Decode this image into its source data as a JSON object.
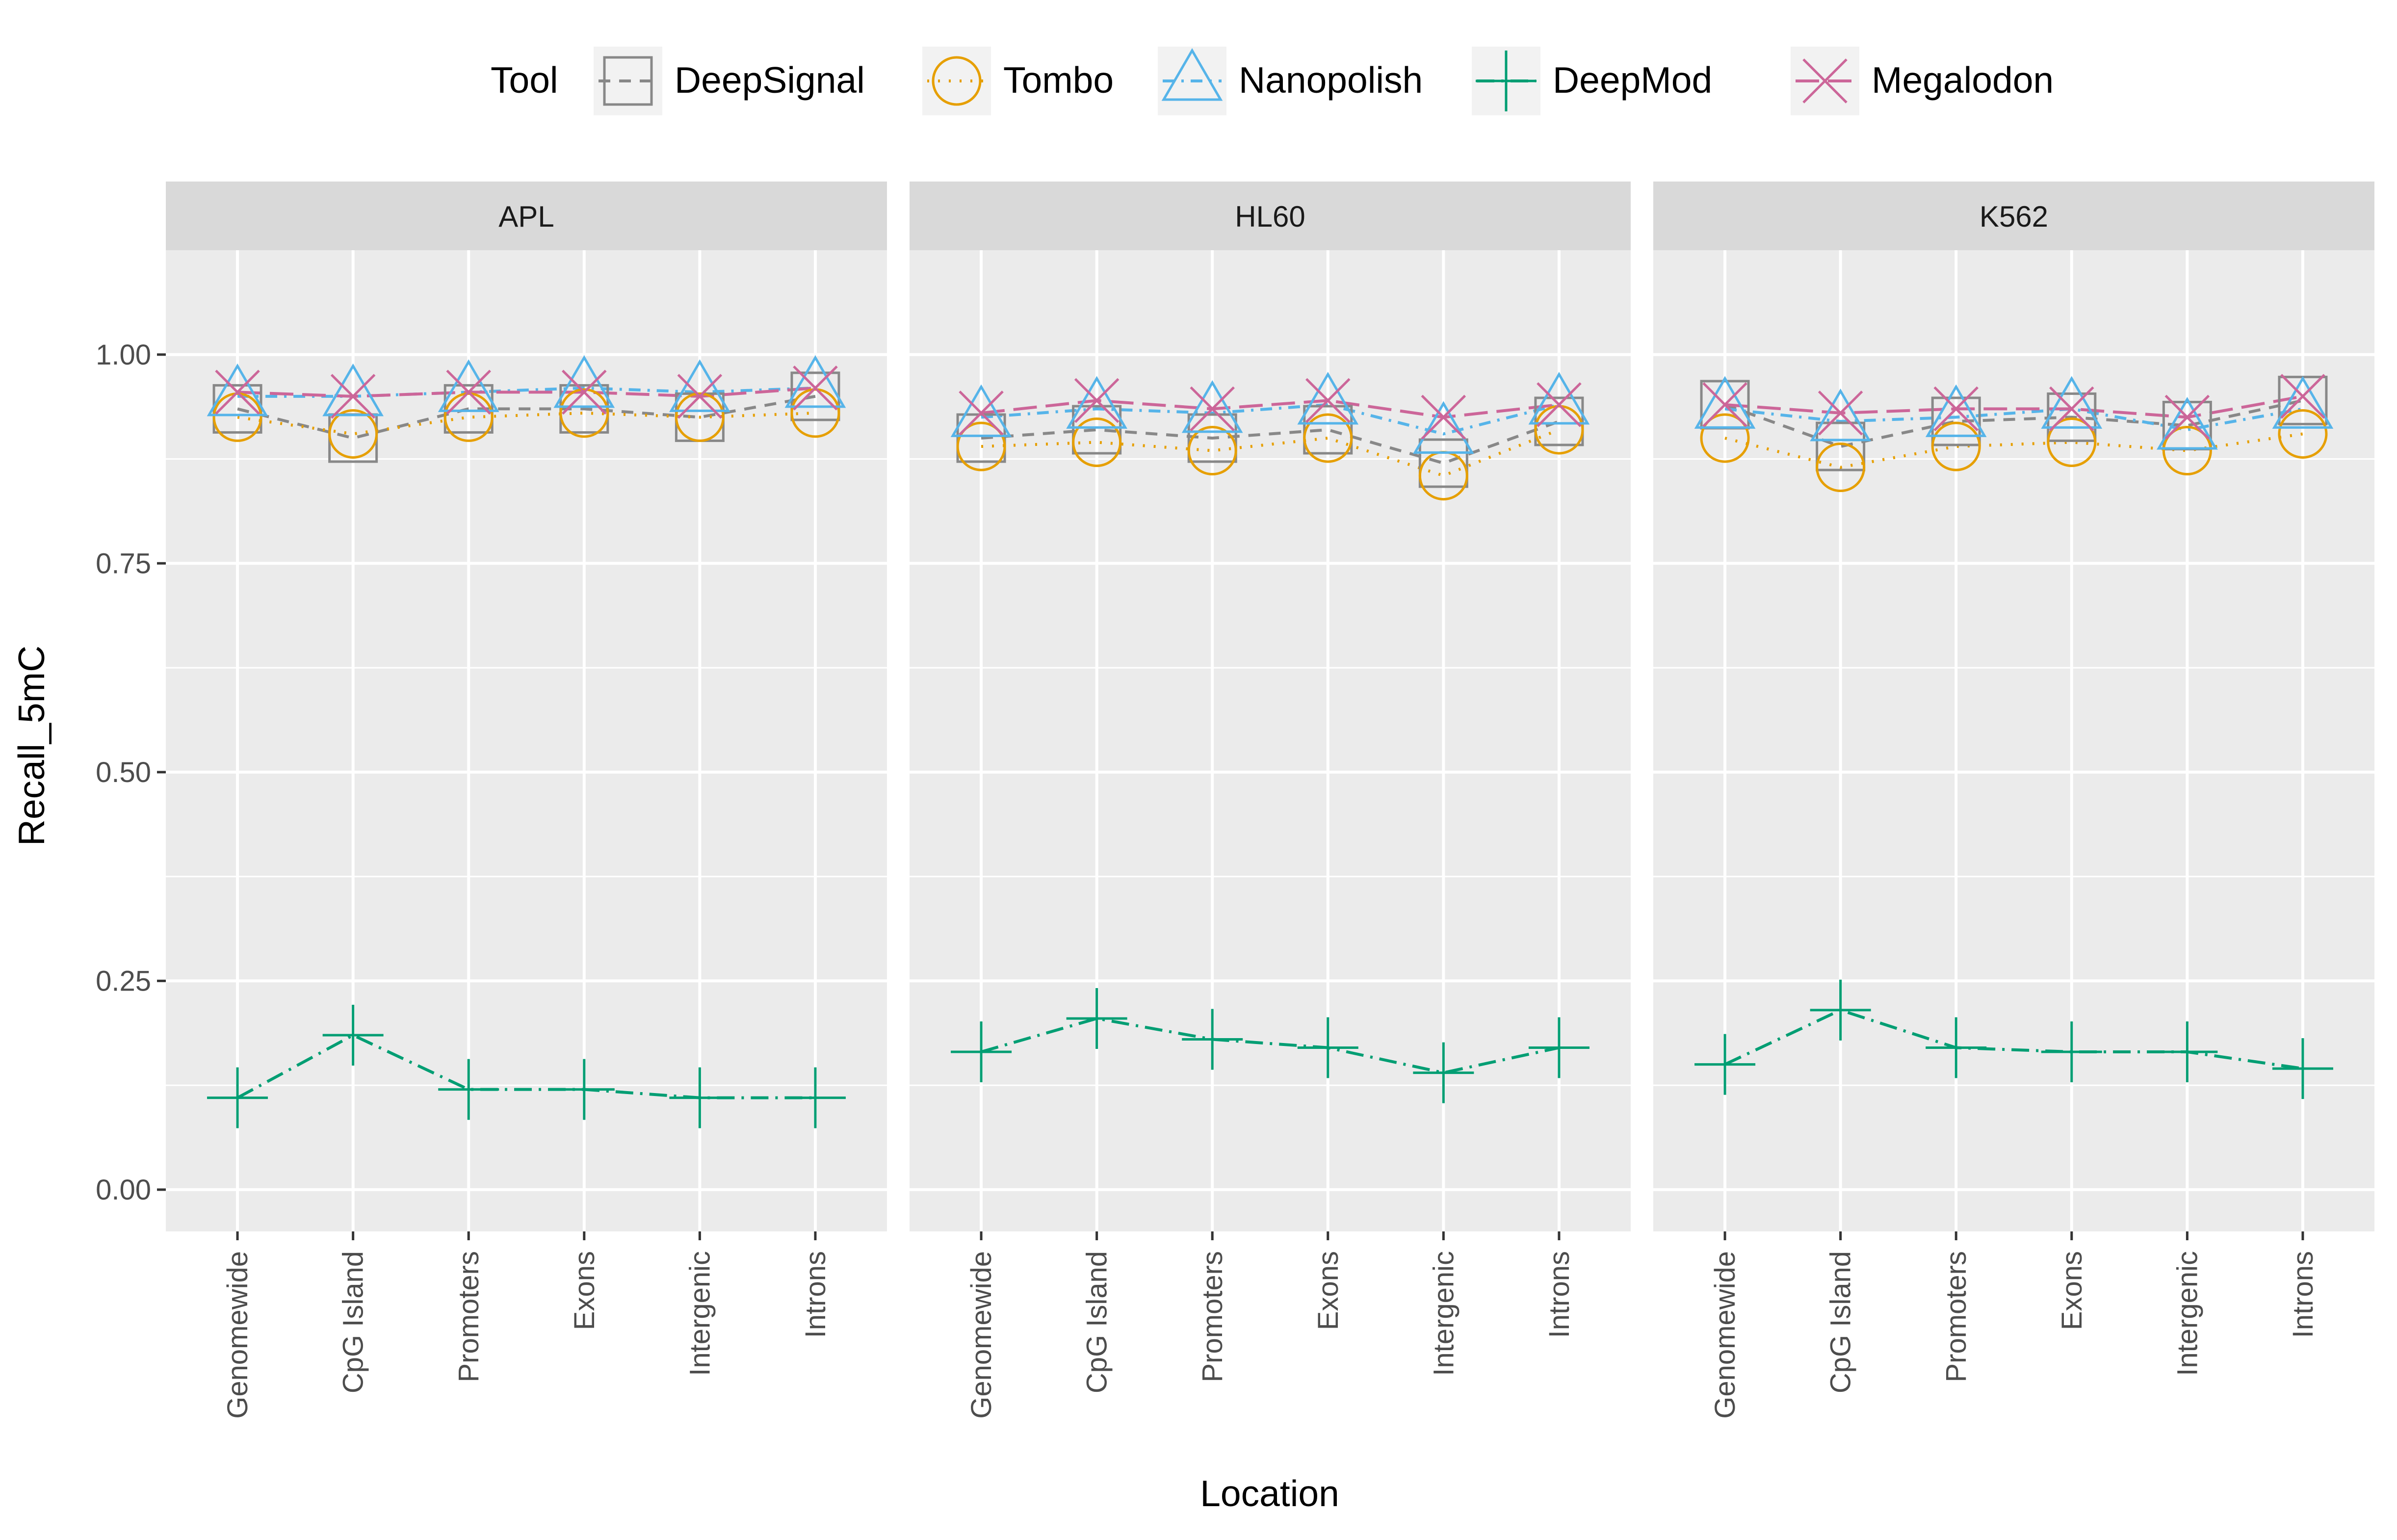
{
  "chart_data": {
    "type": "line",
    "xlabel": "Location",
    "ylabel": "Recall_5mC",
    "ylim": [
      -0.05,
      1.125
    ],
    "yticks": [
      0.0,
      0.25,
      0.5,
      0.75,
      1.0
    ],
    "ytick_labels": [
      "0.00",
      "0.25",
      "0.50",
      "0.75",
      "1.00"
    ],
    "grid": true,
    "legend_position": "top",
    "legend_title": "Tool",
    "categories": [
      "Genomewide",
      "CpG Island",
      "Promoters",
      "Exons",
      "Intergenic",
      "Introns"
    ],
    "panels": [
      "APL",
      "HL60",
      "K562"
    ],
    "series": [
      {
        "name": "DeepSignal",
        "color": "#888888",
        "shape": "square",
        "dash": "dashed",
        "values": {
          "APL": [
            0.935,
            0.9,
            0.935,
            0.935,
            0.925,
            0.95
          ],
          "HL60": [
            0.9,
            0.91,
            0.9,
            0.91,
            0.87,
            0.92
          ],
          "K562": [
            0.94,
            0.89,
            0.92,
            0.925,
            0.915,
            0.945
          ]
        }
      },
      {
        "name": "Tombo",
        "color": "#E69F00",
        "shape": "circle",
        "dash": "dotted",
        "values": {
          "APL": [
            0.925,
            0.905,
            0.925,
            0.93,
            0.925,
            0.93
          ],
          "HL60": [
            0.89,
            0.895,
            0.885,
            0.9,
            0.855,
            0.91
          ],
          "K562": [
            0.9,
            0.865,
            0.89,
            0.895,
            0.885,
            0.905
          ]
        }
      },
      {
        "name": "Nanopolish",
        "color": "#56B4E9",
        "shape": "triangle",
        "dash": "dashdot",
        "values": {
          "APL": [
            0.95,
            0.95,
            0.955,
            0.96,
            0.955,
            0.96
          ],
          "HL60": [
            0.925,
            0.935,
            0.93,
            0.94,
            0.905,
            0.94
          ],
          "K562": [
            0.935,
            0.92,
            0.925,
            0.935,
            0.91,
            0.935
          ]
        }
      },
      {
        "name": "DeepMod",
        "color": "#009E73",
        "shape": "plus",
        "dash": "longdashdot",
        "values": {
          "APL": [
            0.11,
            0.185,
            0.12,
            0.12,
            0.11,
            0.11
          ],
          "HL60": [
            0.165,
            0.205,
            0.18,
            0.17,
            0.14,
            0.17
          ],
          "K562": [
            0.15,
            0.215,
            0.17,
            0.165,
            0.165,
            0.145
          ]
        }
      },
      {
        "name": "Megalodon",
        "color": "#CC6699",
        "shape": "x",
        "dash": "longdash",
        "values": {
          "APL": [
            0.955,
            0.95,
            0.955,
            0.955,
            0.95,
            0.96
          ],
          "HL60": [
            0.93,
            0.945,
            0.935,
            0.945,
            0.925,
            0.94
          ],
          "K562": [
            0.94,
            0.93,
            0.935,
            0.935,
            0.925,
            0.95
          ]
        }
      }
    ]
  }
}
